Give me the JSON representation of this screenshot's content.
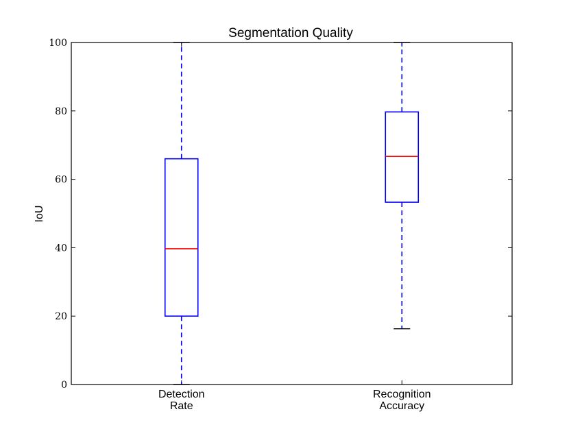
{
  "chart_data": {
    "type": "box",
    "title": "Segmentation Quality",
    "xlabel": "",
    "ylabel": "IoU",
    "ylim": [
      0,
      100
    ],
    "yticks": [
      "0",
      "20",
      "40",
      "60",
      "80",
      "100"
    ],
    "grid": false,
    "categories": [
      [
        "Detection",
        "Rate"
      ],
      [
        "Recognition",
        "Accuracy"
      ]
    ],
    "boxes": [
      {
        "whisker_low": 0,
        "q1": 20,
        "median": 39.7,
        "q3": 66,
        "whisker_high": 100
      },
      {
        "whisker_low": 16.3,
        "q1": 53.3,
        "median": 66.7,
        "q3": 79.7,
        "whisker_high": 100
      }
    ],
    "colors": {
      "box": "#0000ff",
      "median": "#ff0000",
      "cap": "#000000",
      "axes": "#000000"
    }
  }
}
